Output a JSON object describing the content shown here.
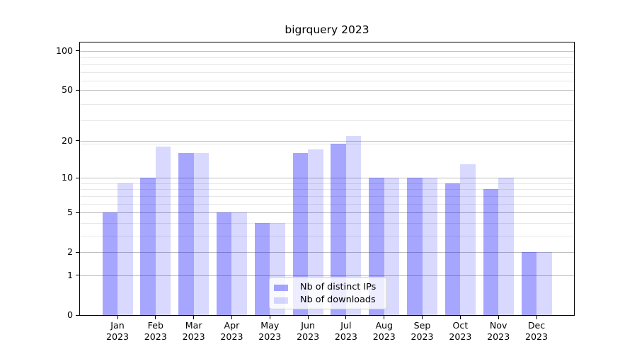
{
  "chart_data": {
    "type": "bar",
    "title": "bigrquery 2023",
    "categories": [
      "Jan",
      "Feb",
      "Mar",
      "Apr",
      "May",
      "Jun",
      "Jul",
      "Aug",
      "Sep",
      "Oct",
      "Nov",
      "Dec"
    ],
    "xtick_year": "2023",
    "series": [
      {
        "name": "Nb of distinct IPs",
        "color": "rgba(0,0,255,0.35)",
        "values": [
          5,
          10,
          16,
          5,
          4,
          16,
          19,
          10,
          10,
          9,
          8,
          2
        ]
      },
      {
        "name": "Nb of downloads",
        "color": "rgba(0,0,255,0.15)",
        "values": [
          9,
          18,
          16,
          5,
          4,
          17,
          22,
          10,
          10,
          13,
          10,
          2
        ]
      }
    ],
    "yscale": "log1p",
    "ymax": 116,
    "yticks": [
      0,
      1,
      2,
      5,
      10,
      20,
      50,
      100
    ],
    "yticks_minor": [
      3,
      4,
      6,
      7,
      8,
      9,
      19,
      29,
      39,
      59,
      69,
      79,
      89
    ],
    "xlabel": "",
    "ylabel": "",
    "grid": true,
    "legend_position": "lower-center",
    "colors": {
      "bar_distinct_ips": "rgba(0,0,255,0.35)",
      "bar_downloads": "rgba(0,0,255,0.15)",
      "major_grid": "#bdbdbd",
      "minor_grid": "#e7e7e7",
      "axis": "#000000"
    }
  }
}
